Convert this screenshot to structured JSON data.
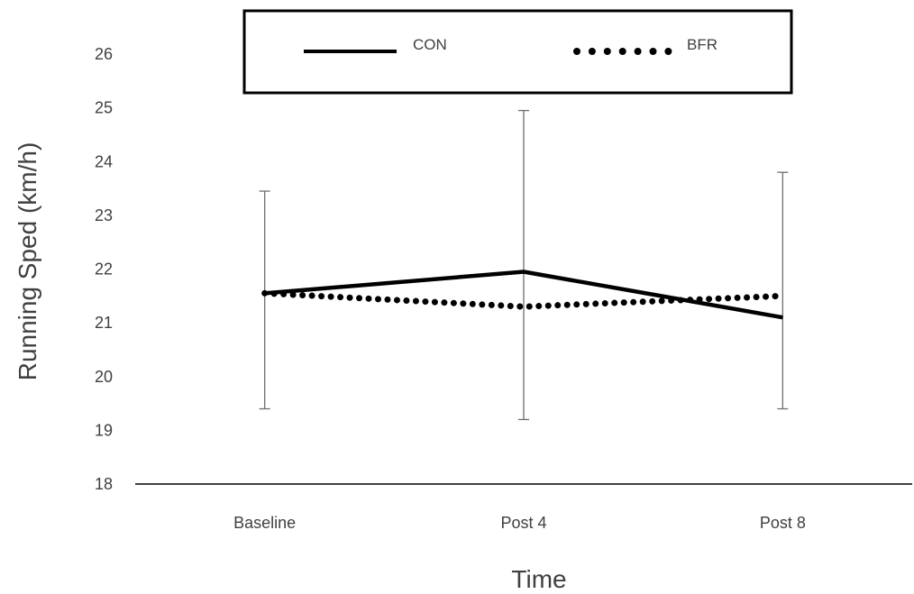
{
  "chart_data": {
    "type": "line",
    "xlabel": "Time",
    "ylabel": "Running Sped (km/h)",
    "categories": [
      "Baseline",
      "Post 4",
      "Post 8"
    ],
    "ylim": [
      18,
      26
    ],
    "yticks": [
      18,
      19,
      20,
      21,
      22,
      23,
      24,
      25,
      26
    ],
    "grid": false,
    "legend_position": "top",
    "series": [
      {
        "name": "CON",
        "style": "solid",
        "color": "#000000",
        "values": [
          21.55,
          21.95,
          21.1
        ],
        "error_low": [
          19.4,
          19.2,
          19.4
        ],
        "error_high": [
          23.45,
          24.95,
          23.8
        ]
      },
      {
        "name": "BFR",
        "style": "dotted",
        "color": "#000000",
        "values": [
          21.55,
          21.3,
          21.5
        ]
      }
    ]
  }
}
